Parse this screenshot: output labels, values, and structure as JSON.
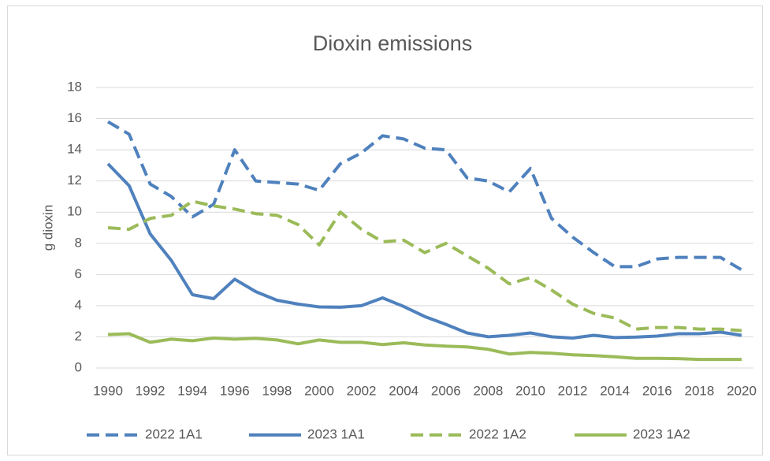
{
  "chart_data": {
    "type": "line",
    "title": "Dioxin emissions",
    "y_label": "g dioxin",
    "x": [
      1990,
      1991,
      1992,
      1993,
      1994,
      1995,
      1996,
      1997,
      1998,
      1999,
      2000,
      2001,
      2002,
      2003,
      2004,
      2005,
      2006,
      2007,
      2008,
      2009,
      2010,
      2011,
      2012,
      2013,
      2014,
      2015,
      2016,
      2017,
      2018,
      2019,
      2020
    ],
    "xlim": [
      1990,
      2020
    ],
    "xticks": [
      1990,
      1992,
      1994,
      1996,
      1998,
      2000,
      2002,
      2004,
      2006,
      2008,
      2010,
      2012,
      2014,
      2016,
      2018,
      2020
    ],
    "ylim": [
      0,
      18
    ],
    "yticks": [
      0,
      2,
      4,
      6,
      8,
      10,
      12,
      14,
      16,
      18
    ],
    "grid": true,
    "legend": "bottom",
    "series": [
      {
        "name": "2022 1A1",
        "color": "#4f81bd",
        "dashed": true,
        "values": [
          15.8,
          15.0,
          11.8,
          11.0,
          9.7,
          10.5,
          14.0,
          12.0,
          11.9,
          11.8,
          11.4,
          13.1,
          13.8,
          14.9,
          14.7,
          14.1,
          14.0,
          12.2,
          12.0,
          11.3,
          12.8,
          9.6,
          8.4,
          7.4,
          6.5,
          6.5,
          7.0,
          7.1,
          7.1,
          7.1,
          6.3
        ]
      },
      {
        "name": "2023 1A1",
        "color": "#4f81bd",
        "dashed": false,
        "values": [
          13.1,
          11.7,
          8.6,
          6.9,
          4.7,
          4.45,
          5.7,
          4.9,
          4.35,
          4.1,
          3.92,
          3.9,
          4.0,
          4.5,
          3.95,
          3.3,
          2.8,
          2.25,
          2.0,
          2.1,
          2.25,
          2.0,
          1.92,
          2.1,
          1.95,
          1.98,
          2.05,
          2.2,
          2.2,
          2.3,
          2.1
        ]
      },
      {
        "name": "2022 1A2",
        "color": "#9bbb59",
        "dashed": true,
        "values": [
          9.0,
          8.9,
          9.6,
          9.8,
          10.7,
          10.4,
          10.2,
          9.9,
          9.8,
          9.2,
          7.9,
          10.0,
          8.9,
          8.1,
          8.2,
          7.4,
          8.0,
          7.2,
          6.4,
          5.4,
          5.8,
          5.0,
          4.1,
          3.5,
          3.2,
          2.5,
          2.6,
          2.6,
          2.5,
          2.5,
          2.4
        ]
      },
      {
        "name": "2023 1A2",
        "color": "#9bbb59",
        "dashed": false,
        "values": [
          2.15,
          2.2,
          1.65,
          1.85,
          1.75,
          1.92,
          1.85,
          1.9,
          1.8,
          1.55,
          1.8,
          1.65,
          1.65,
          1.5,
          1.62,
          1.48,
          1.4,
          1.35,
          1.2,
          0.9,
          1.0,
          0.95,
          0.85,
          0.8,
          0.72,
          0.62,
          0.62,
          0.6,
          0.55,
          0.55,
          0.55
        ]
      }
    ]
  }
}
